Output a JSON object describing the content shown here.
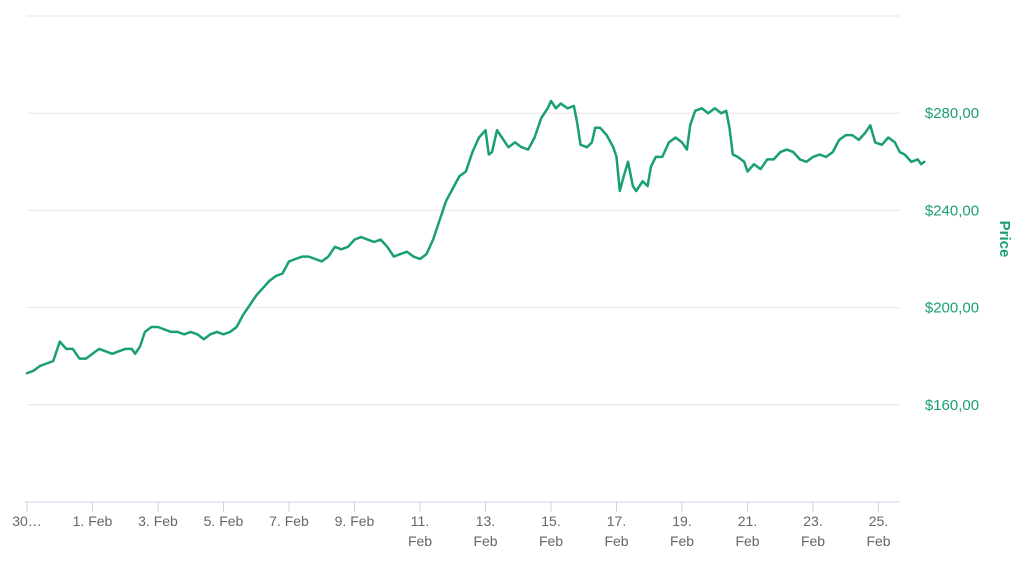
{
  "chart_data": {
    "type": "line",
    "title": "",
    "xlabel": "",
    "ylabel": "Price",
    "ylim": [
      120,
      320
    ],
    "yticks": [
      {
        "value": 160,
        "label": "$160,00"
      },
      {
        "value": 200,
        "label": "$200,00"
      },
      {
        "value": 240,
        "label": "$240,00"
      },
      {
        "value": 280,
        "label": "$280,00"
      }
    ],
    "gridlines": [
      120,
      160,
      200,
      240,
      280,
      320
    ],
    "xlim": [
      0,
      26.6
    ],
    "xticks": [
      {
        "x": 0,
        "label": [
          "30…"
        ]
      },
      {
        "x": 2,
        "label": [
          "1. Feb"
        ]
      },
      {
        "x": 4,
        "label": [
          "3. Feb"
        ]
      },
      {
        "x": 6,
        "label": [
          "5. Feb"
        ]
      },
      {
        "x": 8,
        "label": [
          "7. Feb"
        ]
      },
      {
        "x": 10,
        "label": [
          "9. Feb"
        ]
      },
      {
        "x": 12,
        "label": [
          "11.",
          "Feb"
        ]
      },
      {
        "x": 14,
        "label": [
          "13.",
          "Feb"
        ]
      },
      {
        "x": 16,
        "label": [
          "15.",
          "Feb"
        ]
      },
      {
        "x": 18,
        "label": [
          "17.",
          "Feb"
        ]
      },
      {
        "x": 20,
        "label": [
          "19.",
          "Feb"
        ]
      },
      {
        "x": 22,
        "label": [
          "21.",
          "Feb"
        ]
      },
      {
        "x": 24,
        "label": [
          "23.",
          "Feb"
        ]
      },
      {
        "x": 26,
        "label": [
          "25.",
          "Feb"
        ]
      }
    ],
    "series": [
      {
        "name": "Price",
        "color": "#1a9e77",
        "points": [
          [
            0.0,
            173
          ],
          [
            0.2,
            174
          ],
          [
            0.4,
            176
          ],
          [
            0.6,
            177
          ],
          [
            0.8,
            178
          ],
          [
            0.9,
            182
          ],
          [
            1.0,
            186
          ],
          [
            1.2,
            183
          ],
          [
            1.4,
            183
          ],
          [
            1.6,
            179
          ],
          [
            1.8,
            179
          ],
          [
            2.0,
            181
          ],
          [
            2.2,
            183
          ],
          [
            2.4,
            182
          ],
          [
            2.6,
            181
          ],
          [
            2.8,
            182
          ],
          [
            3.0,
            183
          ],
          [
            3.2,
            183
          ],
          [
            3.3,
            181
          ],
          [
            3.45,
            184
          ],
          [
            3.6,
            190
          ],
          [
            3.8,
            192
          ],
          [
            4.0,
            192
          ],
          [
            4.2,
            191
          ],
          [
            4.4,
            190
          ],
          [
            4.6,
            190
          ],
          [
            4.8,
            189
          ],
          [
            5.0,
            190
          ],
          [
            5.2,
            189
          ],
          [
            5.4,
            187
          ],
          [
            5.6,
            189
          ],
          [
            5.8,
            190
          ],
          [
            6.0,
            189
          ],
          [
            6.2,
            190
          ],
          [
            6.4,
            192
          ],
          [
            6.6,
            197
          ],
          [
            6.8,
            201
          ],
          [
            7.0,
            205
          ],
          [
            7.2,
            208
          ],
          [
            7.4,
            211
          ],
          [
            7.6,
            213
          ],
          [
            7.8,
            214
          ],
          [
            8.0,
            219
          ],
          [
            8.2,
            220
          ],
          [
            8.4,
            221
          ],
          [
            8.6,
            221
          ],
          [
            8.8,
            220
          ],
          [
            9.0,
            219
          ],
          [
            9.2,
            221
          ],
          [
            9.4,
            225
          ],
          [
            9.6,
            224
          ],
          [
            9.8,
            225
          ],
          [
            10.0,
            228
          ],
          [
            10.2,
            229
          ],
          [
            10.4,
            228
          ],
          [
            10.6,
            227
          ],
          [
            10.8,
            228
          ],
          [
            11.0,
            225
          ],
          [
            11.2,
            221
          ],
          [
            11.4,
            222
          ],
          [
            11.6,
            223
          ],
          [
            11.8,
            221
          ],
          [
            12.0,
            220
          ],
          [
            12.2,
            222
          ],
          [
            12.4,
            228
          ],
          [
            12.6,
            236
          ],
          [
            12.8,
            244
          ],
          [
            13.0,
            249
          ],
          [
            13.2,
            254
          ],
          [
            13.4,
            256
          ],
          [
            13.6,
            264
          ],
          [
            13.8,
            270
          ],
          [
            14.0,
            273
          ],
          [
            14.1,
            263
          ],
          [
            14.2,
            264
          ],
          [
            14.35,
            273
          ],
          [
            14.5,
            270
          ],
          [
            14.7,
            266
          ],
          [
            14.9,
            268
          ],
          [
            15.1,
            266
          ],
          [
            15.3,
            265
          ],
          [
            15.5,
            270
          ],
          [
            15.7,
            278
          ],
          [
            15.9,
            282
          ],
          [
            16.0,
            285
          ],
          [
            16.15,
            282
          ],
          [
            16.3,
            284
          ],
          [
            16.5,
            282
          ],
          [
            16.7,
            283
          ],
          [
            16.8,
            276
          ],
          [
            16.9,
            267
          ],
          [
            17.1,
            266
          ],
          [
            17.25,
            268
          ],
          [
            17.35,
            274
          ],
          [
            17.5,
            274
          ],
          [
            17.7,
            271
          ],
          [
            17.9,
            266
          ],
          [
            18.0,
            262
          ],
          [
            18.1,
            248
          ],
          [
            18.2,
            253
          ],
          [
            18.35,
            260
          ],
          [
            18.5,
            250
          ],
          [
            18.6,
            248
          ],
          [
            18.8,
            252
          ],
          [
            18.95,
            250
          ],
          [
            19.05,
            258
          ],
          [
            19.2,
            262
          ],
          [
            19.4,
            262
          ],
          [
            19.6,
            268
          ],
          [
            19.8,
            270
          ],
          [
            20.0,
            268
          ],
          [
            20.15,
            265
          ],
          [
            20.25,
            275
          ],
          [
            20.4,
            281
          ],
          [
            20.6,
            282
          ],
          [
            20.8,
            280
          ],
          [
            21.0,
            282
          ],
          [
            21.2,
            280
          ],
          [
            21.35,
            281
          ],
          [
            21.45,
            274
          ],
          [
            21.55,
            263
          ],
          [
            21.7,
            262
          ],
          [
            21.9,
            260
          ],
          [
            22.0,
            256
          ],
          [
            22.2,
            259
          ],
          [
            22.4,
            257
          ],
          [
            22.6,
            261
          ],
          [
            22.8,
            261
          ],
          [
            23.0,
            264
          ],
          [
            23.2,
            265
          ],
          [
            23.4,
            264
          ],
          [
            23.6,
            261
          ],
          [
            23.8,
            260
          ],
          [
            24.0,
            262
          ],
          [
            24.2,
            263
          ],
          [
            24.4,
            262
          ],
          [
            24.6,
            264
          ],
          [
            24.8,
            269
          ],
          [
            25.0,
            271
          ],
          [
            25.2,
            271
          ],
          [
            25.4,
            269
          ],
          [
            25.6,
            272
          ],
          [
            25.75,
            275
          ],
          [
            25.9,
            268
          ],
          [
            26.1,
            267
          ],
          [
            26.3,
            270
          ],
          [
            26.5,
            268
          ],
          [
            26.65,
            264
          ],
          [
            26.8,
            263
          ],
          [
            27.0,
            260
          ],
          [
            27.2,
            261
          ],
          [
            27.3,
            259
          ],
          [
            27.4,
            260
          ]
        ]
      }
    ]
  }
}
